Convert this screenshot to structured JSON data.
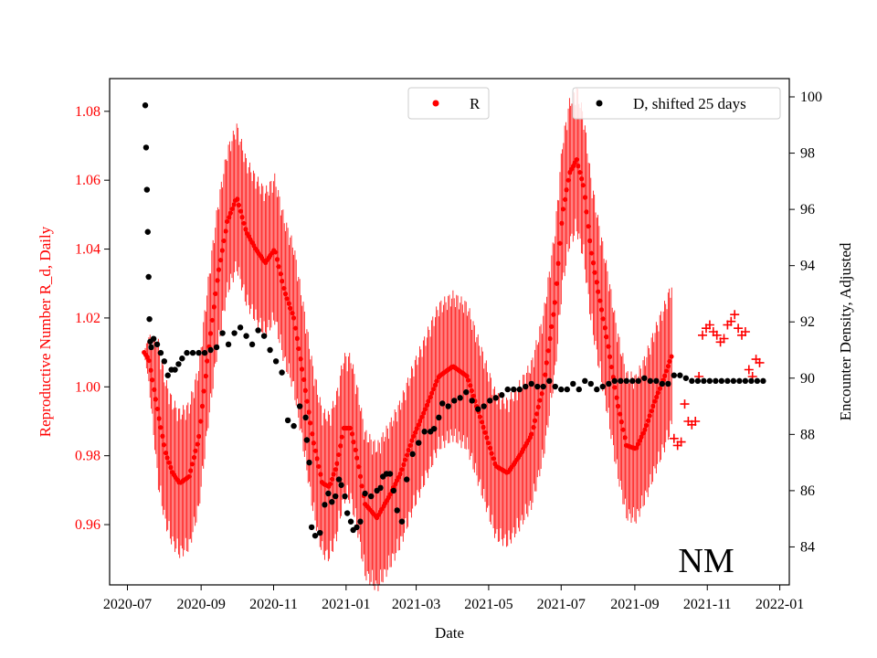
{
  "chart_data": {
    "type": "scatter",
    "title": "",
    "annotation": "NM",
    "xlabel": "Date",
    "ylabel_left": "Reproductive Number R_d, Daily",
    "ylabel_right": "Encounter Density, Adjusted",
    "x_ticks": [
      "2020-07",
      "2020-09",
      "2020-11",
      "2021-01",
      "2021-03",
      "2021-05",
      "2021-07",
      "2021-09",
      "2021-11",
      "2022-01"
    ],
    "x_tick_days": [
      0,
      62,
      123,
      184,
      243,
      304,
      365,
      427,
      488,
      549
    ],
    "xlim_days": [
      -15,
      557
    ],
    "y_left": {
      "lim": [
        0.9425,
        1.0895
      ],
      "ticks": [
        0.96,
        0.98,
        1.0,
        1.02,
        1.04,
        1.06,
        1.08
      ],
      "tick_labels": [
        "0.96",
        "0.98",
        "1.00",
        "1.02",
        "1.04",
        "1.06",
        "1.08"
      ]
    },
    "y_right": {
      "lim": [
        82.65,
        100.65
      ],
      "ticks": [
        84,
        86,
        88,
        90,
        92,
        94,
        96,
        98,
        100
      ],
      "tick_labels": [
        "84",
        "86",
        "88",
        "90",
        "92",
        "94",
        "96",
        "98",
        "100"
      ]
    },
    "colors": {
      "R": "#ff0000",
      "D": "#000000",
      "axis": "#000000",
      "left_tick": "#ff0000"
    },
    "legend": [
      {
        "label": "R",
        "color": "#ff0000",
        "placement": "upper-center"
      },
      {
        "label": "D, shifted 25 days",
        "color": "#000000",
        "placement": "upper-right"
      }
    ],
    "series_R": {
      "name": "R",
      "color": "#ff0000",
      "marker": "dot",
      "band_amplitude": 0.022,
      "days": [
        14,
        18,
        22,
        27,
        32,
        38,
        44,
        52,
        60,
        68,
        76,
        84,
        92,
        100,
        108,
        116,
        124,
        132,
        140,
        148,
        156,
        164,
        170,
        176,
        182,
        188,
        194,
        200,
        210,
        220,
        230,
        240,
        250,
        262,
        274,
        286,
        298,
        310,
        320,
        330,
        340,
        350,
        360,
        366,
        372,
        378,
        384,
        390,
        396,
        404,
        412,
        420,
        428,
        436,
        444,
        452,
        458
      ],
      "values": [
        1.01,
        1.008,
        1.0,
        0.99,
        0.981,
        0.975,
        0.972,
        0.974,
        0.985,
        1.01,
        1.032,
        1.048,
        1.055,
        1.045,
        1.04,
        1.036,
        1.04,
        1.028,
        1.02,
        1.003,
        0.985,
        0.972,
        0.971,
        0.977,
        0.988,
        0.988,
        0.978,
        0.966,
        0.962,
        0.968,
        0.975,
        0.985,
        0.993,
        1.003,
        1.006,
        1.003,
        0.99,
        0.977,
        0.975,
        0.98,
        0.986,
        1.0,
        1.025,
        1.05,
        1.062,
        1.066,
        1.058,
        1.04,
        1.028,
        1.013,
        0.996,
        0.983,
        0.982,
        0.988,
        0.996,
        1.003,
        1.009
      ],
      "plus_markers": {
        "days": [
          460,
          463,
          466,
          469,
          472,
          475,
          478,
          481,
          484,
          487,
          490,
          493,
          496,
          499,
          502,
          505,
          508,
          511,
          514,
          517,
          520,
          523,
          526,
          529,
          532
        ],
        "values": [
          0.985,
          0.983,
          0.984,
          0.995,
          0.99,
          0.989,
          0.99,
          1.003,
          1.015,
          1.017,
          1.018,
          1.016,
          1.015,
          1.013,
          1.014,
          1.018,
          1.019,
          1.021,
          1.017,
          1.015,
          1.016,
          1.005,
          1.003,
          1.008,
          1.007
        ]
      }
    },
    "series_D": {
      "name": "D, shifted 25 days",
      "color": "#000000",
      "marker": "dot",
      "days": [
        15,
        15.7,
        16.4,
        17.1,
        17.8,
        18.5,
        19.2,
        20,
        22,
        25,
        28,
        31,
        34,
        37,
        40,
        43,
        46,
        50,
        55,
        60,
        65,
        70,
        75,
        80,
        85,
        90,
        95,
        100,
        105,
        110,
        115,
        120,
        125,
        130,
        135,
        140,
        145,
        150,
        151,
        153,
        155,
        158,
        162,
        166,
        169,
        172,
        175,
        178,
        180,
        183,
        185,
        188,
        190,
        193,
        196,
        200,
        205,
        210,
        213,
        215,
        218,
        221,
        224,
        227,
        231,
        235,
        240,
        245,
        250,
        255,
        258,
        262,
        265,
        270,
        275,
        280,
        285,
        290,
        295,
        300,
        305,
        310,
        315,
        320,
        325,
        330,
        335,
        340,
        345,
        350,
        355,
        360,
        365,
        370,
        375,
        380,
        385,
        390,
        395,
        400,
        405,
        410,
        415,
        420,
        425,
        430,
        435,
        440,
        445,
        450,
        455,
        460,
        465,
        470,
        475,
        480,
        485,
        490,
        495,
        500,
        505,
        510,
        515,
        520,
        525,
        530,
        535
      ],
      "values": [
        99.7,
        98.2,
        96.7,
        95.2,
        93.6,
        92.1,
        91.3,
        91.1,
        91.4,
        91.2,
        90.9,
        90.6,
        90.1,
        90.3,
        90.3,
        90.5,
        90.7,
        90.9,
        90.9,
        90.9,
        90.9,
        91.0,
        91.1,
        91.6,
        91.2,
        91.6,
        91.8,
        91.5,
        91.2,
        91.7,
        91.5,
        91.0,
        90.6,
        90.2,
        88.5,
        88.3,
        89.0,
        88.6,
        87.8,
        87.0,
        84.7,
        84.4,
        84.5,
        85.5,
        85.9,
        85.6,
        85.8,
        86.4,
        86.2,
        85.8,
        85.2,
        84.9,
        84.6,
        84.7,
        84.9,
        85.9,
        85.8,
        86.0,
        86.1,
        86.5,
        86.6,
        86.6,
        86.0,
        85.3,
        84.9,
        86.4,
        87.3,
        87.7,
        88.1,
        88.1,
        88.2,
        88.6,
        89.1,
        89.0,
        89.2,
        89.3,
        89.5,
        89.2,
        88.9,
        89.0,
        89.2,
        89.3,
        89.4,
        89.6,
        89.6,
        89.6,
        89.7,
        89.8,
        89.7,
        89.7,
        89.9,
        89.7,
        89.6,
        89.6,
        89.8,
        89.6,
        89.9,
        89.8,
        89.6,
        89.7,
        89.8,
        89.9,
        89.9,
        89.9,
        89.9,
        89.9,
        90.0,
        89.9,
        89.9,
        89.8,
        89.8,
        90.1,
        90.1,
        90.0,
        89.9,
        89.9,
        89.9,
        89.9,
        89.9,
        89.9,
        89.9,
        89.9,
        89.9,
        89.9,
        89.9,
        89.9,
        89.9
      ]
    }
  }
}
